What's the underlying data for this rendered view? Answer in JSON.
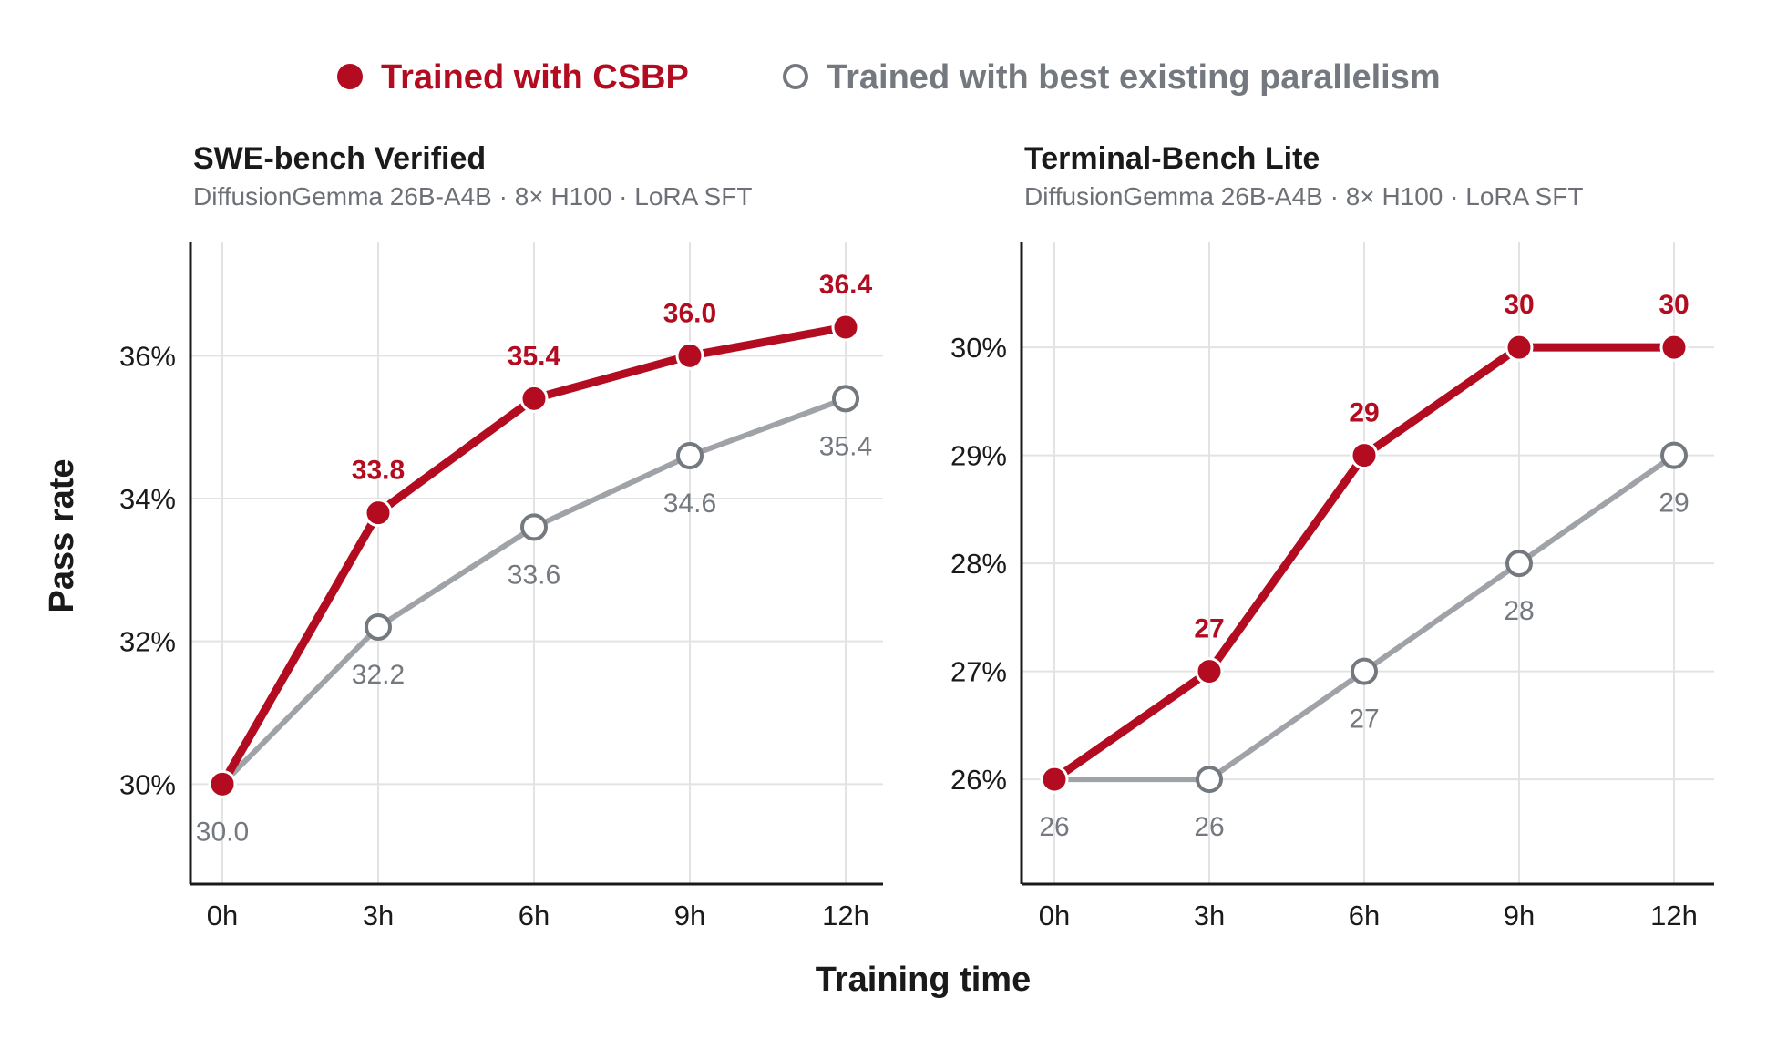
{
  "colors": {
    "primary": "#b30b1f",
    "secondary": "#9fa3a8",
    "secondary_text": "#747980",
    "grid": "#e3e3e3",
    "axis": "#1a1a1a"
  },
  "legend": [
    {
      "label": "Trained with CSBP",
      "marker": "filled-circle"
    },
    {
      "label": "Trained with best existing parallelism",
      "marker": "hollow-circle"
    }
  ],
  "shared_xlabel": "Training time",
  "shared_ylabel": "Pass rate",
  "chart_data": [
    {
      "type": "line",
      "title": "SWE-bench Verified",
      "subtitle": "DiffusionGemma 26B-A4B · 8× H100 · LoRA SFT",
      "categories": [
        "0h",
        "3h",
        "6h",
        "9h",
        "12h"
      ],
      "ylim": [
        28.6,
        37.6
      ],
      "yticks": [
        30,
        32,
        34,
        36
      ],
      "ytick_labels": [
        "30%",
        "32%",
        "34%",
        "36%"
      ],
      "grid": true,
      "series": [
        {
          "name": "Trained with CSBP",
          "values": [
            30.0,
            33.8,
            35.4,
            36.0,
            36.4
          ],
          "labels": [
            "",
            "33.8",
            "35.4",
            "36.0",
            "36.4"
          ]
        },
        {
          "name": "Trained with best existing parallelism",
          "values": [
            30.0,
            32.2,
            33.6,
            34.6,
            35.4
          ],
          "labels": [
            "30.0",
            "32.2",
            "33.6",
            "34.6",
            "35.4"
          ]
        }
      ]
    },
    {
      "type": "line",
      "title": "Terminal-Bench Lite",
      "subtitle": "DiffusionGemma 26B-A4B · 8× H100 · LoRA SFT",
      "categories": [
        "0h",
        "3h",
        "6h",
        "9h",
        "12h"
      ],
      "ylim": [
        25.03,
        30.98
      ],
      "yticks": [
        26,
        27,
        28,
        29,
        30
      ],
      "ytick_labels": [
        "26%",
        "27%",
        "28%",
        "29%",
        "30%"
      ],
      "grid": true,
      "series": [
        {
          "name": "Trained with CSBP",
          "values": [
            26,
            27,
            29,
            30,
            30
          ],
          "labels": [
            "26",
            "27",
            "29",
            "30",
            "30"
          ]
        },
        {
          "name": "Trained with best existing parallelism",
          "values": [
            26,
            26,
            27,
            28,
            29
          ],
          "labels": [
            "",
            "26",
            "27",
            "28",
            "29"
          ]
        }
      ]
    }
  ]
}
